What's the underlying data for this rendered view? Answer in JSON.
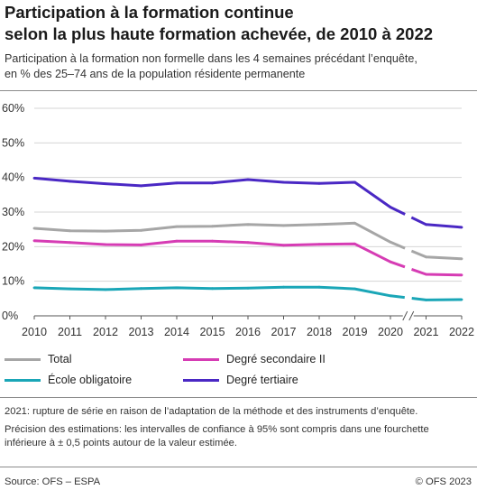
{
  "title_lines": [
    "Participation à la formation continue",
    "selon la plus haute formation achevée, de 2010 à 2022"
  ],
  "subtitle_lines": [
    "Participation à la formation non formelle dans les 4 semaines précédant l’enquête,",
    "en % des 25–74 ans de la population résidente permanente"
  ],
  "note_lines": [
    "2021: rupture de série en raison de l’adaptation de la méthode et des instruments d’enquête."
  ],
  "precision_lines": [
    "Précision des estimations: les intervalles de confiance à 95% sont compris dans une fourchette",
    "inférieure à ± 0,5 points autour de la valeur estimée."
  ],
  "source": "Source: OFS – ESPA",
  "copyright": "© OFS 2023",
  "chart_data": {
    "type": "line",
    "x": [
      "2010",
      "2011",
      "2012",
      "2013",
      "2014",
      "2015",
      "2016",
      "2017",
      "2018",
      "2019",
      "2020",
      "2021",
      "2022"
    ],
    "yticks": [
      "0%",
      "10%",
      "20%",
      "30%",
      "40%",
      "50%",
      "60%"
    ],
    "ylim": [
      0,
      60
    ],
    "grid": true,
    "series_break": "2020-2021",
    "series": [
      {
        "name": "Total",
        "color": "#a6a6a6",
        "values": [
          25.3,
          24.6,
          24.5,
          24.7,
          25.8,
          25.9,
          26.4,
          26.1,
          26.4,
          26.8,
          21.3,
          17.0,
          16.5
        ]
      },
      {
        "name": "École obligatoire",
        "color": "#1aa6b7",
        "values": [
          8.1,
          7.8,
          7.6,
          7.9,
          8.1,
          7.9,
          8.0,
          8.3,
          8.3,
          7.8,
          5.8,
          4.6,
          4.7
        ]
      },
      {
        "name": "Degré secondaire II",
        "color": "#d63cb4",
        "values": [
          21.7,
          21.2,
          20.6,
          20.5,
          21.6,
          21.6,
          21.2,
          20.4,
          20.7,
          20.8,
          15.6,
          12.0,
          11.8
        ]
      },
      {
        "name": "Degré tertiaire",
        "color": "#4a28c4",
        "values": [
          39.8,
          38.9,
          38.2,
          37.6,
          38.4,
          38.4,
          39.4,
          38.6,
          38.3,
          38.6,
          31.4,
          26.4,
          25.6
        ]
      }
    ]
  }
}
